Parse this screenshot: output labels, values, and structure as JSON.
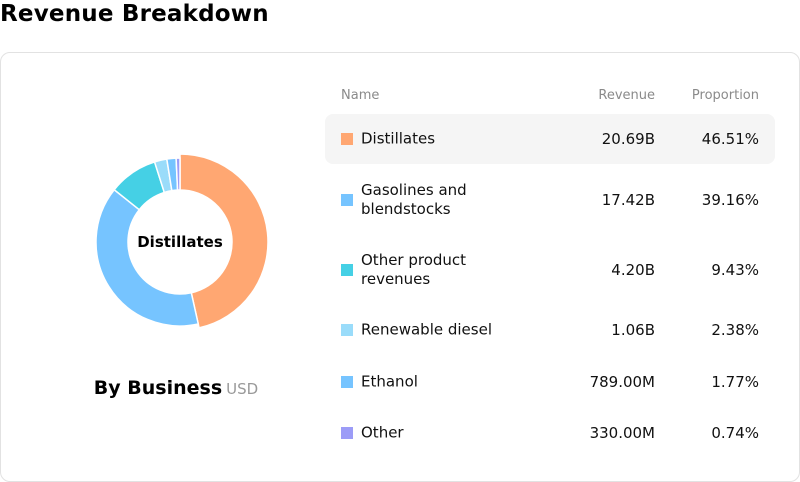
{
  "page": {
    "title": "Revenue Breakdown"
  },
  "chart_data": {
    "type": "pie",
    "subtitle": "By Business",
    "unit": "USD",
    "center_label": "Distillates",
    "columns": {
      "name": "Name",
      "revenue": "Revenue",
      "proportion": "Proportion"
    },
    "slices": [
      {
        "name": "Distillates",
        "revenue": "20.69B",
        "proportion": "46.51%",
        "value": 46.51,
        "color": "#FFA772"
      },
      {
        "name": "Gasolines and blendstocks",
        "revenue": "17.42B",
        "proportion": "39.16%",
        "value": 39.16,
        "color": "#76C4FF"
      },
      {
        "name": "Other product revenues",
        "revenue": "4.20B",
        "proportion": "9.43%",
        "value": 9.43,
        "color": "#45D0E5"
      },
      {
        "name": "Renewable diesel",
        "revenue": "1.06B",
        "proportion": "2.38%",
        "value": 2.38,
        "color": "#9ADCFA"
      },
      {
        "name": "Ethanol",
        "revenue": "789.00M",
        "proportion": "1.77%",
        "value": 1.77,
        "color": "#76C4FF"
      },
      {
        "name": "Other",
        "revenue": "330.00M",
        "proportion": "0.74%",
        "value": 0.74,
        "color": "#9C9CF7"
      }
    ]
  }
}
